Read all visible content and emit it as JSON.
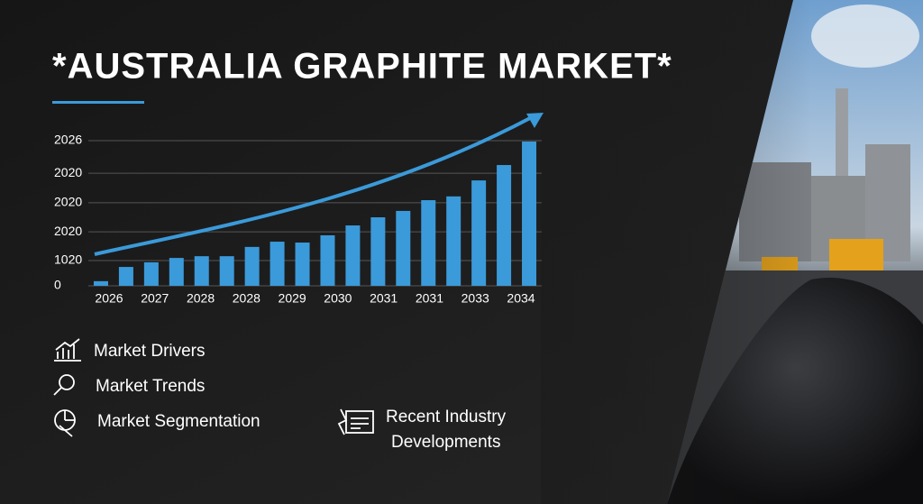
{
  "chart_data": {
    "type": "bar",
    "title": "*AUSTRALIA GRAPHITE MARKET*",
    "categories": [
      null,
      null,
      null,
      null,
      null,
      null,
      null,
      null,
      null,
      null,
      null,
      null,
      null,
      null,
      null,
      null,
      null,
      null
    ],
    "values": [
      0.16,
      0.65,
      0.81,
      0.96,
      1.02,
      1.02,
      1.34,
      1.52,
      1.49,
      1.74,
      2.08,
      2.36,
      2.58,
      2.95,
      3.08,
      3.63,
      4.16,
      4.97
    ],
    "xtick_labels": [
      "2026",
      "2027",
      "2028",
      "2028",
      "2029",
      "2030",
      "2031",
      "2031",
      "2033",
      "2034"
    ],
    "color": "#3b9ad9",
    "ylim": [
      0,
      5
    ],
    "yticks": [
      0,
      {
        "value": 0.87,
        "label": "1020"
      },
      {
        "value": 1.86,
        "label": "2020"
      },
      {
        "value": 2.86,
        "label": "2020"
      },
      {
        "value": 3.88,
        "label": "2020"
      },
      {
        "value": 5,
        "label": "2026"
      }
    ],
    "grid": true
  },
  "features": [
    "Market Drivers",
    "Market Trends",
    "Market Segmentation",
    "Recent Industry Developments"
  ]
}
